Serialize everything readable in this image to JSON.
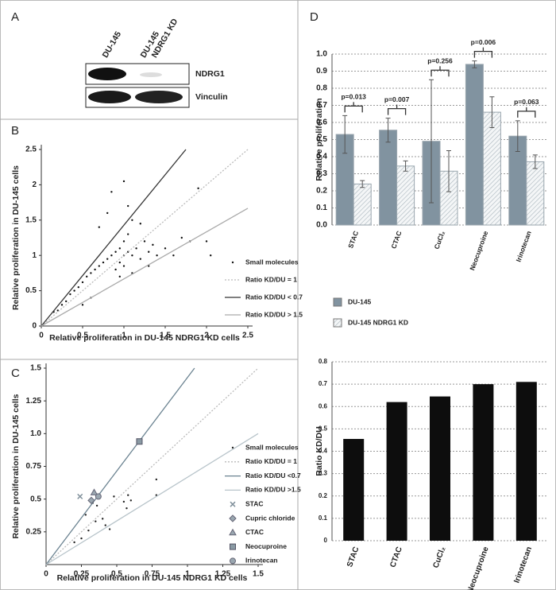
{
  "panel_a": {
    "label": "A",
    "lanes": [
      "DU-145",
      "DU-145",
      "NDRG1 KD"
    ],
    "proteins": [
      "NDRG1",
      "Vinculin"
    ]
  },
  "chart_data": [
    {
      "type": "scatter",
      "label": "B",
      "xlabel": "Relative proliferation in DU-145 NDRG1 KD cells",
      "ylabel": "Relative proliferation in DU-145 cells",
      "xlim": [
        0,
        2.5
      ],
      "ylim": [
        0,
        2.5
      ],
      "xticks": [
        0,
        0.5,
        1,
        1.5,
        2,
        2.5
      ],
      "yticks": [
        0,
        0.5,
        1,
        1.5,
        2,
        2.5
      ],
      "series": [
        {
          "name": "Small molecules",
          "style": "points",
          "marker": "dot",
          "color": "#111111",
          "x": [
            0.15,
            0.2,
            0.25,
            0.3,
            0.35,
            0.4,
            0.45,
            0.5,
            0.55,
            0.6,
            0.65,
            0.7,
            0.75,
            0.8,
            0.85,
            0.9,
            0.9,
            0.95,
            0.95,
            1.0,
            1.0,
            1.0,
            1.05,
            1.05,
            1.1,
            1.1,
            1.15,
            1.2,
            1.25,
            1.3,
            1.35,
            1.4,
            1.5,
            1.6,
            1.7,
            1.8,
            2.0,
            2.05,
            0.7,
            0.8,
            0.85,
            1.0,
            1.05,
            1.2,
            0.95,
            1.1,
            1.3,
            0.6,
            0.5,
            1.9
          ],
          "values": [
            0.2,
            0.22,
            0.3,
            0.35,
            0.45,
            0.5,
            0.55,
            0.62,
            0.7,
            0.75,
            0.8,
            0.85,
            0.9,
            0.95,
            1.0,
            1.05,
            0.8,
            1.1,
            0.9,
            1.0,
            1.2,
            0.85,
            1.05,
            1.3,
            1.0,
            1.5,
            1.1,
            0.95,
            1.2,
            1.05,
            1.15,
            1.0,
            1.1,
            1.0,
            1.25,
            1.2,
            1.2,
            1.0,
            1.4,
            1.6,
            1.9,
            2.05,
            1.7,
            1.45,
            0.7,
            0.75,
            0.85,
            0.4,
            0.3,
            1.95
          ]
        },
        {
          "name": "Ratio KD/DU = 1",
          "style": "line",
          "dash": true,
          "color": "#bbbbbb",
          "x": [
            0,
            2.5
          ],
          "values": [
            0,
            2.5
          ]
        },
        {
          "name": "Ratio KD/DU < 0.7",
          "style": "line",
          "color": "#333333",
          "x": [
            0,
            1.75
          ],
          "values": [
            0,
            2.5
          ]
        },
        {
          "name": "Ratio KD/DU > 1.5",
          "style": "line",
          "color": "#aaaaaa",
          "x": [
            0,
            2.5
          ],
          "values": [
            0,
            1.667
          ]
        }
      ]
    },
    {
      "type": "scatter",
      "label": "C",
      "xlabel": "Relative proliferation in DU-145 NDRG1 KD cells",
      "ylabel": "Relative proliferation in DU-145  cells",
      "xlim": [
        0,
        1.5
      ],
      "ylim": [
        0,
        1.5
      ],
      "xticks": [
        0,
        0.25,
        0.5,
        0.75,
        1,
        1.25,
        1.5
      ],
      "yticks": [
        0.25,
        0.5,
        0.75,
        {
          "value": 1,
          "label": "1.0"
        },
        1.25,
        1.5
      ],
      "series": [
        {
          "name": "Small molecules",
          "style": "points",
          "marker": "dot",
          "color": "#222222",
          "x": [
            0.2,
            0.25,
            0.3,
            0.28,
            0.35,
            0.4,
            0.42,
            0.45,
            0.48,
            0.55,
            0.57,
            0.6,
            0.58,
            0.78,
            0.78,
            0.33,
            0.36
          ],
          "values": [
            0.17,
            0.2,
            0.26,
            0.38,
            0.33,
            0.35,
            0.3,
            0.27,
            0.52,
            0.48,
            0.43,
            0.49,
            0.53,
            0.65,
            0.53,
            0.47,
            0.45
          ]
        },
        {
          "name": "Ratio KD/DU = 1",
          "style": "line",
          "dash": true,
          "color": "#bbbbbb",
          "x": [
            0,
            1.5
          ],
          "values": [
            0,
            1.5
          ]
        },
        {
          "name": "Ratio KD/DU <0.7",
          "style": "line",
          "color": "#6b8391",
          "x": [
            0,
            1.05
          ],
          "values": [
            0,
            1.5
          ]
        },
        {
          "name": "Ratio KD/DU >1.5",
          "style": "line",
          "color": "#b8c4ca",
          "x": [
            0,
            1.5
          ],
          "values": [
            0,
            1.0
          ]
        },
        {
          "name": "STAC",
          "style": "points",
          "marker": "x",
          "color": "#7f8f9a",
          "x": [
            0.24
          ],
          "values": [
            0.52
          ]
        },
        {
          "name": "Cupric chloride",
          "style": "points",
          "marker": "diamond",
          "color": "#9aa7b0",
          "x": [
            0.32
          ],
          "values": [
            0.49
          ]
        },
        {
          "name": "CTAC",
          "style": "points",
          "marker": "triangle",
          "color": "#9aa7b0",
          "x": [
            0.34
          ],
          "values": [
            0.55
          ]
        },
        {
          "name": "Neocuproine",
          "style": "points",
          "marker": "square",
          "color": "#8a9aa4",
          "x": [
            0.66
          ],
          "values": [
            0.94
          ]
        },
        {
          "name": "Irinotecan",
          "style": "points",
          "marker": "circle",
          "color": "#9aa7b0",
          "x": [
            0.37
          ],
          "values": [
            0.52
          ]
        }
      ]
    },
    {
      "type": "groupbar",
      "label": "D",
      "ylabel": "Relative proliferation",
      "categories": [
        "STAC",
        "CTAC",
        "CuCl₂",
        "Neocuproine",
        "Irinotecan"
      ],
      "ylim": [
        0,
        1.0
      ],
      "yticks": [
        {
          "value": 0,
          "label": "0.0"
        },
        0.1,
        0.2,
        0.3,
        0.4,
        0.5,
        0.6,
        0.7,
        0.8,
        0.9,
        {
          "value": 1,
          "label": "1.0"
        }
      ],
      "p_values": [
        "p=0.013",
        "p=0.007",
        "p=0.256",
        "p=0.006",
        "p=0.063"
      ],
      "series": [
        {
          "name": "DU-145",
          "color": "#8193a0",
          "values": [
            0.53,
            0.555,
            0.49,
            0.94,
            0.52
          ],
          "errors": [
            0.11,
            0.07,
            0.36,
            0.02,
            0.09
          ]
        },
        {
          "name": "DU-145 NDRG1 KD",
          "color": "#f2f4f5",
          "hatch": true,
          "values": [
            0.24,
            0.345,
            0.315,
            0.66,
            0.37
          ],
          "errors": [
            0.02,
            0.03,
            0.12,
            0.09,
            0.04
          ]
        }
      ]
    },
    {
      "type": "bar",
      "ylabel": "Ratio KD/DU",
      "categories": [
        "STAC",
        "CTAC",
        "CuCl₂",
        "Neocuproine",
        "Irinotecan"
      ],
      "ylim": [
        0,
        0.8
      ],
      "yticks": [
        0,
        0.1,
        0.2,
        0.3,
        0.4,
        0.5,
        0.6,
        0.7,
        0.8
      ],
      "values": [
        0.455,
        0.62,
        0.645,
        0.7,
        0.71
      ],
      "color": "#0d0d0d"
    }
  ]
}
